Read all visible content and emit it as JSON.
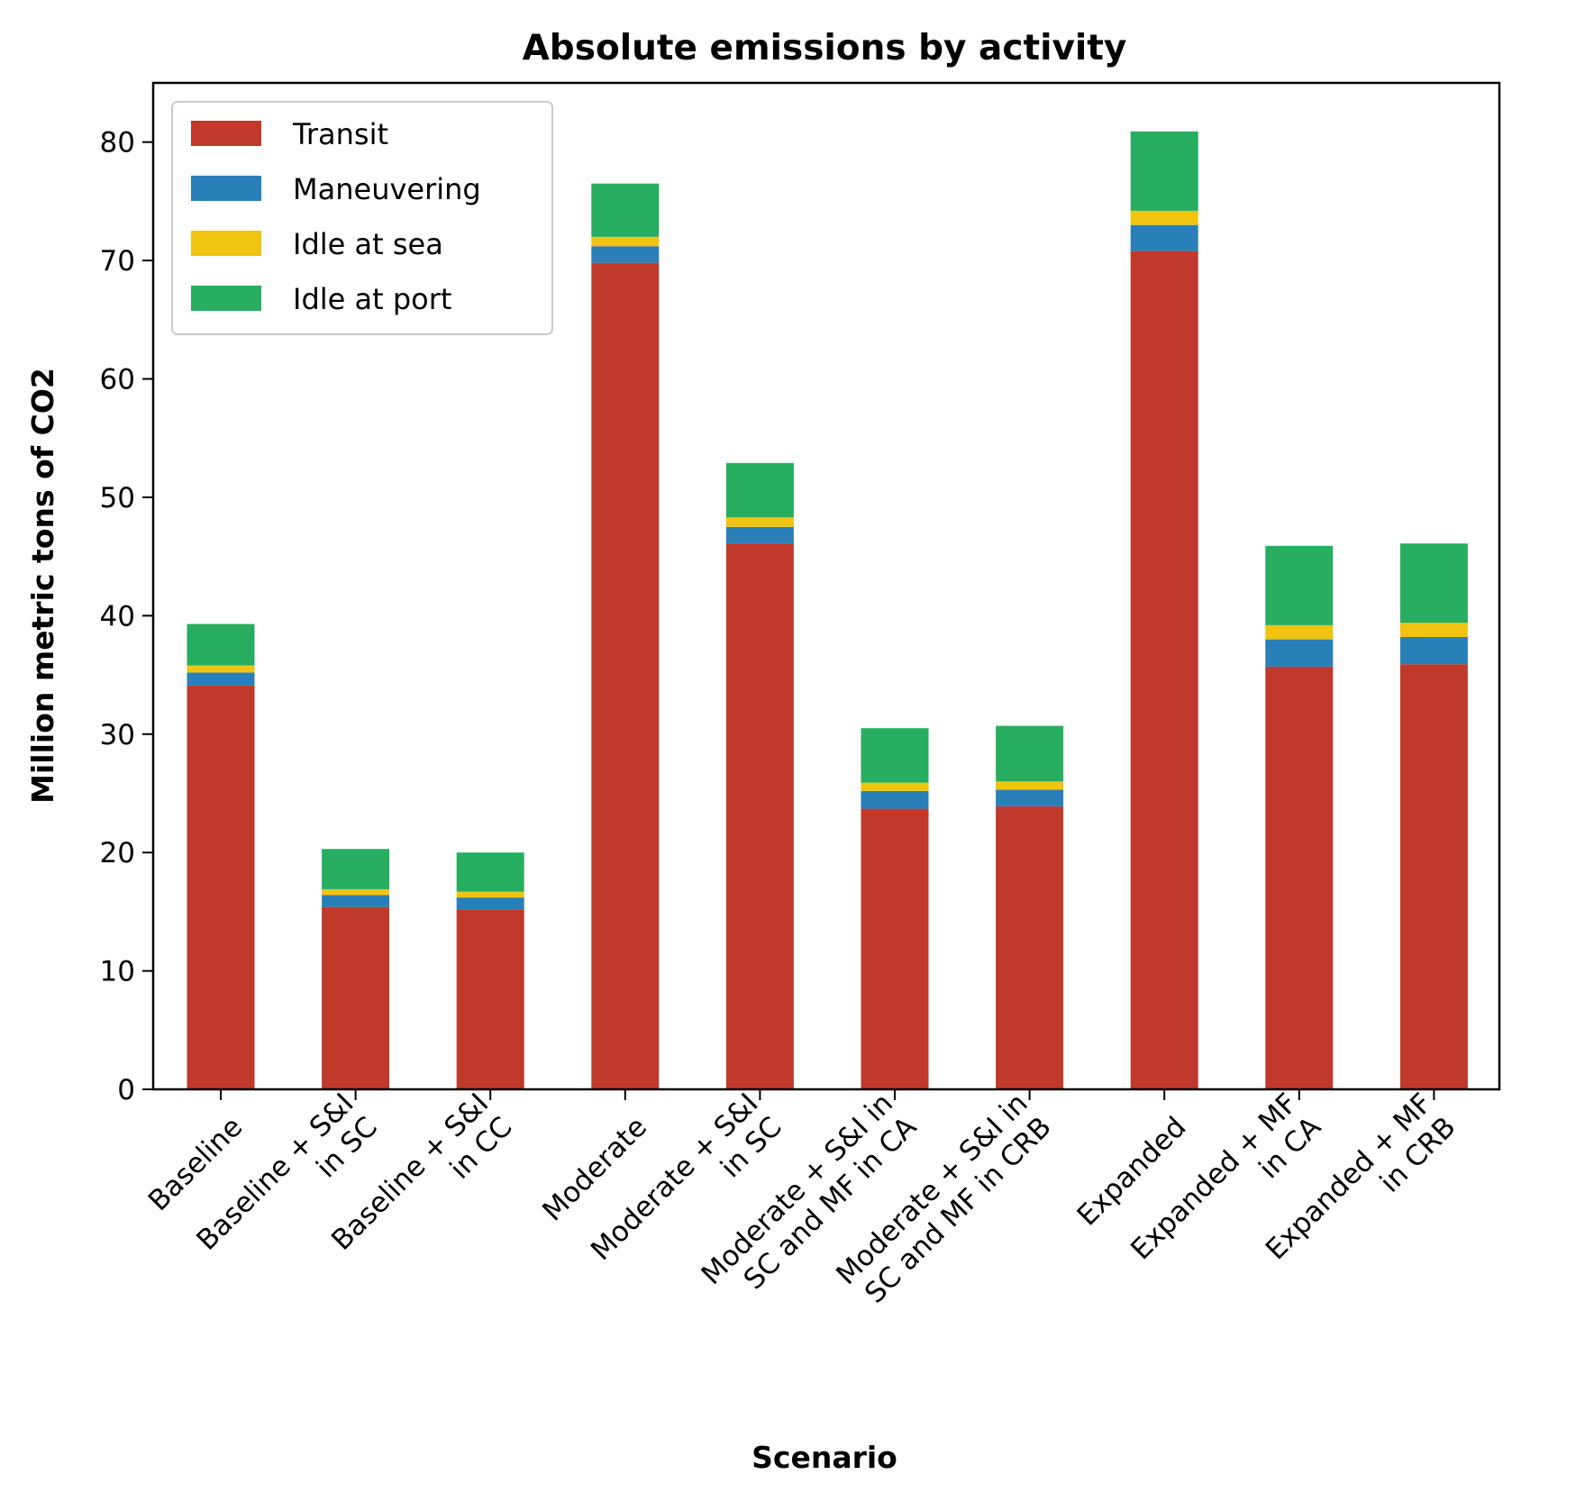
{
  "chart_data": {
    "type": "bar",
    "stacked": true,
    "title": "Absolute emissions by activity",
    "xlabel": "Scenario",
    "ylabel": "Million metric tons of CO2",
    "ylim": [
      0,
      85
    ],
    "yticks": [
      0,
      10,
      20,
      30,
      40,
      50,
      60,
      70,
      80
    ],
    "grid": false,
    "legend_position": "top-left",
    "categories": [
      [
        "Baseline"
      ],
      [
        "Baseline + S&I",
        "in SC"
      ],
      [
        "Baseline + S&I",
        "in CC"
      ],
      [
        "Moderate"
      ],
      [
        "Moderate + S&I",
        "in SC"
      ],
      [
        "Moderate + S&I in",
        "SC and MF in CA"
      ],
      [
        "Moderate + S&I in",
        "SC and MF in CRB"
      ],
      [
        "Expanded"
      ],
      [
        "Expanded + MF",
        "in CA"
      ],
      [
        "Expanded + MF",
        "in CRB"
      ]
    ],
    "series": [
      {
        "name": "Transit",
        "color": "#c0392b",
        "values": [
          34.1,
          15.4,
          15.2,
          69.8,
          46.1,
          23.7,
          23.9,
          70.8,
          35.7,
          35.9
        ]
      },
      {
        "name": "Maneuvering",
        "color": "#2980b9",
        "values": [
          1.1,
          1.0,
          1.0,
          1.4,
          1.4,
          1.5,
          1.4,
          2.2,
          2.3,
          2.3
        ]
      },
      {
        "name": "Idle at sea",
        "color": "#f1c40f",
        "values": [
          0.6,
          0.5,
          0.5,
          0.8,
          0.8,
          0.7,
          0.7,
          1.2,
          1.2,
          1.2
        ]
      },
      {
        "name": "Idle at port",
        "color": "#27ae60",
        "values": [
          3.5,
          3.4,
          3.3,
          4.5,
          4.6,
          4.6,
          4.7,
          6.7,
          6.7,
          6.7
        ]
      }
    ]
  }
}
